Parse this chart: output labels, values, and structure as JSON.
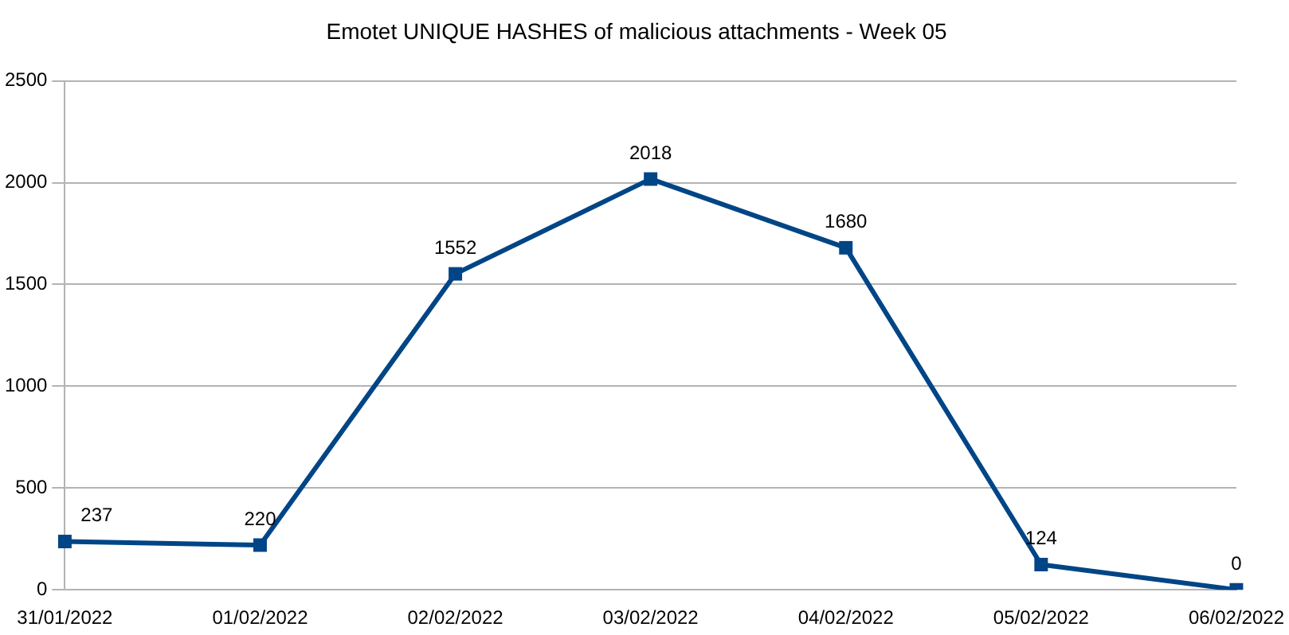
{
  "chart_data": {
    "type": "line",
    "title": "Emotet UNIQUE HASHES of malicious attachments - Week 05",
    "categories": [
      "31/01/2022",
      "01/02/2022",
      "02/02/2022",
      "03/02/2022",
      "04/02/2022",
      "05/02/2022",
      "06/02/2022"
    ],
    "series": [
      {
        "color": "#004586",
        "values": [
          237,
          220,
          1552,
          2018,
          1680,
          124,
          0
        ]
      }
    ],
    "ylim": [
      0,
      2500
    ],
    "yticks": [
      0,
      500,
      1000,
      1500,
      2000,
      2500
    ],
    "grid": "y",
    "marker": "square",
    "line_style": "solid",
    "data_labels": true,
    "legend": false
  }
}
